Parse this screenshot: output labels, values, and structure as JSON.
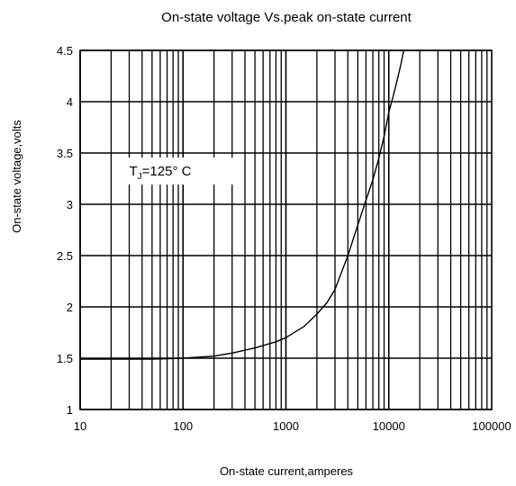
{
  "chart_data": {
    "type": "line",
    "title": "On-state voltage Vs.peak on-state current",
    "xlabel": "On-state current,amperes",
    "ylabel": "On-state voltage,volts",
    "x_scale": "log",
    "y_scale": "linear",
    "xlim": [
      10,
      100000
    ],
    "ylim": [
      1,
      4.5
    ],
    "x_ticks": [
      10,
      100,
      1000,
      10000,
      100000
    ],
    "x_tick_labels": [
      "10",
      "100",
      "1000",
      "10000",
      "100000"
    ],
    "y_ticks": [
      1,
      1.5,
      2,
      2.5,
      3,
      3.5,
      4,
      4.5
    ],
    "y_tick_labels": [
      "1",
      "1.5",
      "2",
      "2.5",
      "3",
      "3.5",
      "4",
      "4.5"
    ],
    "grid": true,
    "series": [
      {
        "x": [
          10,
          50,
          100,
          200,
          300,
          500,
          800,
          1000,
          1500,
          2000,
          2500,
          3000,
          4000,
          5000,
          6000,
          7000,
          8000,
          9000,
          10000,
          11000,
          12000,
          13000,
          14000
        ],
        "y": [
          1.49,
          1.49,
          1.5,
          1.52,
          1.55,
          1.6,
          1.66,
          1.7,
          1.81,
          1.93,
          2.04,
          2.17,
          2.5,
          2.8,
          3.04,
          3.24,
          3.45,
          3.66,
          3.9,
          4.05,
          4.2,
          4.35,
          4.5
        ],
        "color": "#000000"
      }
    ],
    "annotations": [
      {
        "text": "T",
        "subscript": "J",
        "suffix": "=125°  C",
        "x": 30,
        "y": 3.28
      }
    ]
  }
}
